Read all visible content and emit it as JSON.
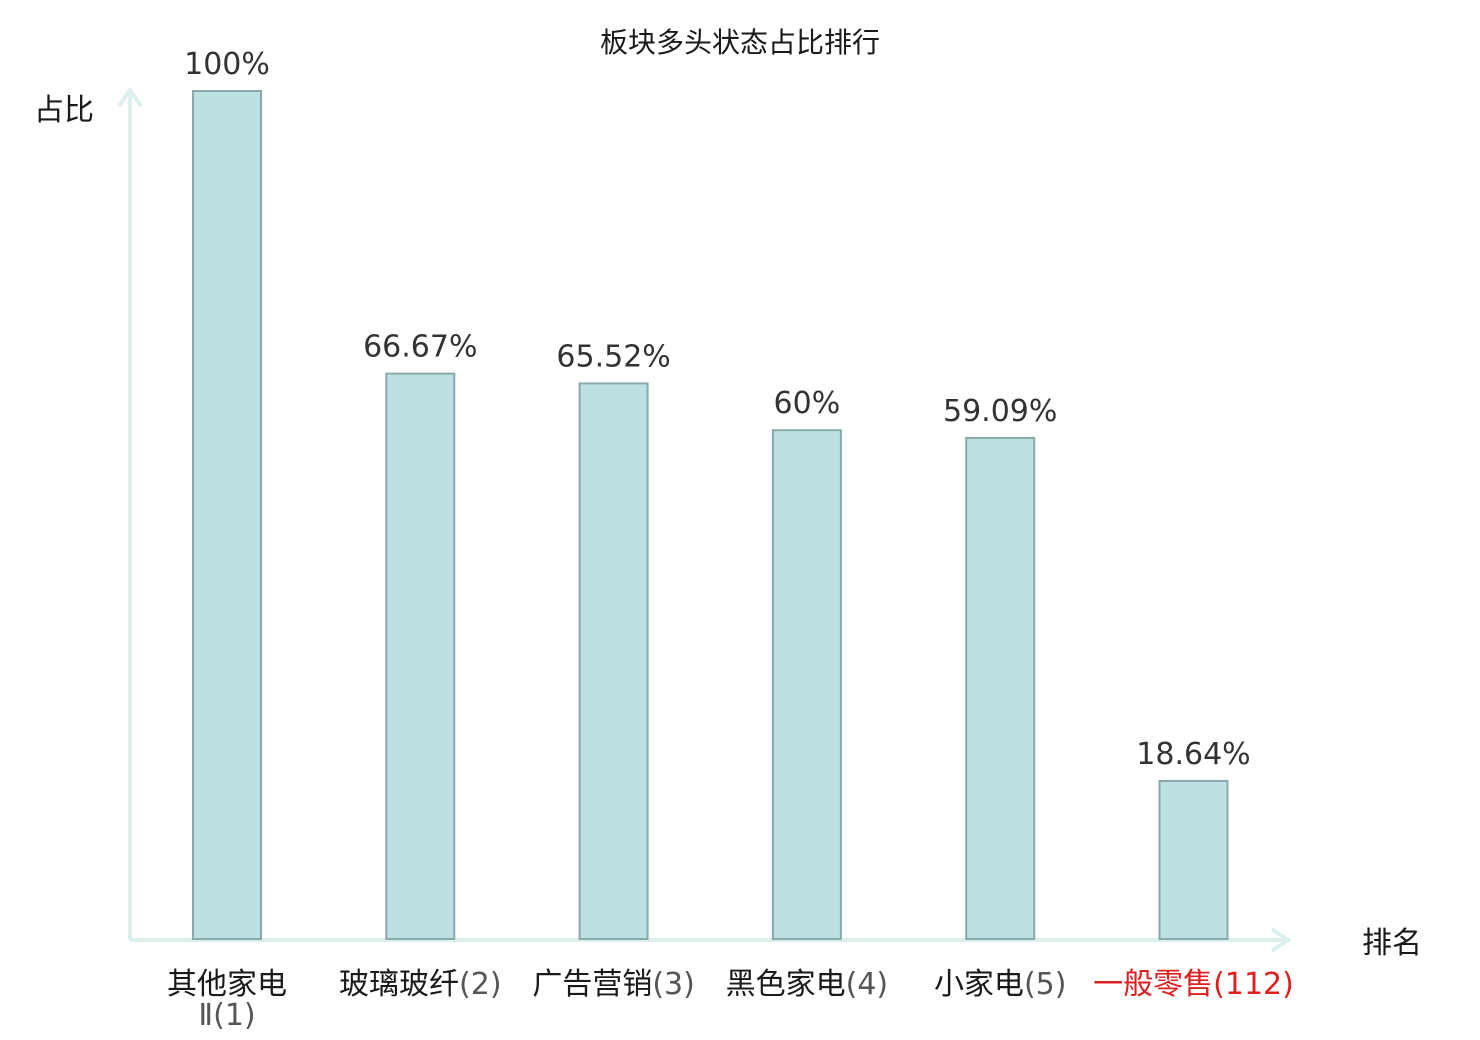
{
  "chart_data": {
    "type": "bar",
    "title": "板块多头状态占比排行",
    "ylabel": "占比",
    "xlabel": "排名",
    "ylim": [
      0,
      100
    ],
    "grid": false,
    "categories": [
      {
        "name": "其他家电Ⅱ",
        "rank": "1",
        "highlight": false
      },
      {
        "name": "玻璃玻纤",
        "rank": "2",
        "highlight": false
      },
      {
        "name": "广告营销",
        "rank": "3",
        "highlight": false
      },
      {
        "name": "黑色家电",
        "rank": "4",
        "highlight": false
      },
      {
        "name": "小家电",
        "rank": "5",
        "highlight": false
      },
      {
        "name": "一般零售",
        "rank": "112",
        "highlight": true
      }
    ],
    "values": [
      100,
      66.67,
      65.52,
      60,
      59.09,
      18.64
    ],
    "value_labels": [
      "100%",
      "66.67%",
      "65.52%",
      "60%",
      "59.09%",
      "18.64%"
    ],
    "colors": {
      "bar_fill": "#bde0e3",
      "bar_stroke": "#8aa9ad",
      "axis": "#dcf0ee",
      "highlight_text": "#e02020"
    }
  }
}
